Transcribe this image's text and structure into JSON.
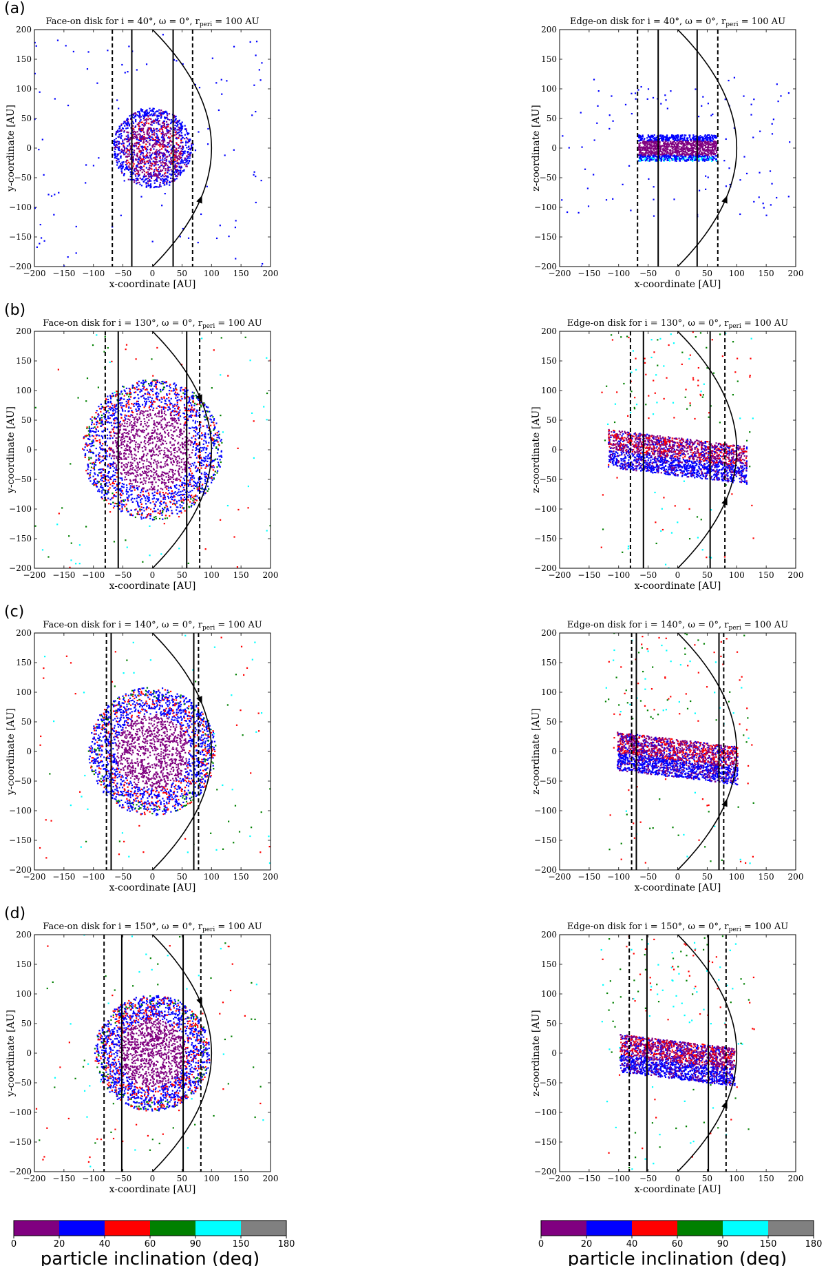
{
  "figure": {
    "row_labels": [
      "(a)",
      "(b)",
      "(c)",
      "(d)"
    ]
  },
  "colorbar": {
    "label": "particle inclination (deg)",
    "ticks": [
      "0",
      "20",
      "40",
      "60",
      "90",
      "150",
      "180"
    ],
    "colors": [
      "#800080",
      "#0000ff",
      "#ff0000",
      "#008000",
      "#00ffff",
      "#808080"
    ]
  },
  "colors": {
    "inc_0_20": "#800080",
    "inc_20_40": "#0000ff",
    "inc_40_60": "#ff0000",
    "inc_60_90": "#008000",
    "inc_90_150": "#00ffff",
    "inc_150_180": "#808080"
  },
  "chart_data": [
    {
      "type": "scatter",
      "view": "face",
      "title_lead": "Face-on disk for i = ",
      "incl_deg": 40,
      "title_tail": "°, ω = 0°, r",
      "title_sub": "peri",
      "title_end": " = 100 AU",
      "xlabel": "x-coordinate [AU]",
      "ylabel": "y-coordinate [AU]",
      "xlim": [
        -200,
        200
      ],
      "ylim": [
        -200,
        200
      ],
      "xticks": [
        -200,
        -150,
        -100,
        -50,
        0,
        50,
        100,
        150,
        200
      ],
      "yticks": [
        -200,
        -150,
        -100,
        -50,
        0,
        50,
        100,
        150,
        200
      ],
      "disk_radius_au": 65,
      "solid_lines_x": [
        -35,
        35
      ],
      "dashed_lines_x": [
        -68,
        68
      ],
      "orbit_periapsis_x": 100,
      "orbit_direction": "upward"
    },
    {
      "type": "scatter",
      "view": "edge",
      "title_lead": "Edge-on disk for i = ",
      "incl_deg": 40,
      "title_tail": "°, ω = 0°, r",
      "title_sub": "peri",
      "title_end": " = 100 AU",
      "xlabel": "x-coordinate [AU]",
      "ylabel": "z-coordinate [AU]",
      "xlim": [
        -200,
        200
      ],
      "ylim": [
        -200,
        200
      ],
      "xticks": [
        -200,
        -150,
        -100,
        -50,
        0,
        50,
        100,
        150,
        200
      ],
      "yticks": [
        -200,
        -150,
        -100,
        -50,
        0,
        50,
        100,
        150,
        200
      ],
      "disk_radius_au": 65,
      "solid_lines_x": [
        -33,
        33
      ],
      "dashed_lines_x": [
        -68,
        68
      ],
      "orbit_periapsis_x": 100,
      "orbit_direction": "upward"
    },
    {
      "type": "scatter",
      "view": "face",
      "title_lead": "Face-on disk for i = ",
      "incl_deg": 130,
      "title_tail": "°, ω = 0°, r",
      "title_sub": "peri",
      "title_end": " = 100 AU",
      "xlabel": "x-coordinate [AU]",
      "ylabel": "y-coordinate [AU]",
      "xlim": [
        -200,
        200
      ],
      "ylim": [
        -200,
        200
      ],
      "xticks": [
        -200,
        -150,
        -100,
        -50,
        0,
        50,
        100,
        150,
        200
      ],
      "yticks": [
        -200,
        -150,
        -100,
        -50,
        0,
        50,
        100,
        150,
        200
      ],
      "disk_radius_au": 115,
      "solid_lines_x": [
        -58,
        58
      ],
      "dashed_lines_x": [
        -80,
        80
      ],
      "orbit_periapsis_x": 100,
      "orbit_direction": "downward"
    },
    {
      "type": "scatter",
      "view": "edge",
      "title_lead": "Edge-on disk for i = ",
      "incl_deg": 130,
      "title_tail": "°, ω = 0°, r",
      "title_sub": "peri",
      "title_end": " = 100 AU",
      "xlabel": "x-coordinate [AU]",
      "ylabel": "z-coordinate [AU]",
      "xlim": [
        -200,
        200
      ],
      "ylim": [
        -200,
        200
      ],
      "xticks": [
        -200,
        -150,
        -100,
        -50,
        0,
        50,
        100,
        150,
        200
      ],
      "yticks": [
        -200,
        -150,
        -100,
        -50,
        0,
        50,
        100,
        150,
        200
      ],
      "disk_radius_au": 115,
      "solid_lines_x": [
        -58,
        55
      ],
      "dashed_lines_x": [
        -80,
        80
      ],
      "orbit_periapsis_x": 100,
      "orbit_direction": "upward"
    },
    {
      "type": "scatter",
      "view": "face",
      "title_lead": "Face-on disk for i = ",
      "incl_deg": 140,
      "title_tail": "°, ω = 0°, r",
      "title_sub": "peri",
      "title_end": " = 100 AU",
      "xlabel": "x-coordinate [AU]",
      "ylabel": "y-coordinate [AU]",
      "xlim": [
        -200,
        200
      ],
      "ylim": [
        -200,
        200
      ],
      "xticks": [
        -200,
        -150,
        -100,
        -50,
        0,
        50,
        100,
        150,
        200
      ],
      "yticks": [
        -200,
        -150,
        -100,
        -50,
        0,
        50,
        100,
        150,
        200
      ],
      "disk_radius_au": 105,
      "solid_lines_x": [
        -70,
        70
      ],
      "dashed_lines_x": [
        -78,
        78
      ],
      "orbit_periapsis_x": 100,
      "orbit_direction": "downward"
    },
    {
      "type": "scatter",
      "view": "edge",
      "title_lead": "Edge-on disk for i = ",
      "incl_deg": 140,
      "title_tail": "°, ω = 0°, r",
      "title_sub": "peri",
      "title_end": " = 100 AU",
      "xlabel": "x-coordinate [AU]",
      "ylabel": "z-coordinate [AU]",
      "xlim": [
        -200,
        200
      ],
      "ylim": [
        -200,
        200
      ],
      "xticks": [
        -200,
        -150,
        -100,
        -50,
        0,
        50,
        100,
        150,
        200
      ],
      "yticks": [
        -200,
        -150,
        -100,
        -50,
        0,
        50,
        100,
        150,
        200
      ],
      "disk_radius_au": 100,
      "solid_lines_x": [
        -70,
        70
      ],
      "dashed_lines_x": [
        -78,
        78
      ],
      "orbit_periapsis_x": 100,
      "orbit_direction": "upward"
    },
    {
      "type": "scatter",
      "view": "face",
      "title_lead": "Face-on disk for i = ",
      "incl_deg": 150,
      "title_tail": "°, ω = 0°, r",
      "title_sub": "peri",
      "title_end": " = 100 AU",
      "xlabel": "x-coordinate [AU]",
      "ylabel": "y-coordinate [AU]",
      "xlim": [
        -200,
        200
      ],
      "ylim": [
        -200,
        200
      ],
      "xticks": [
        -200,
        -150,
        -100,
        -50,
        0,
        50,
        100,
        150,
        200
      ],
      "yticks": [
        -200,
        -150,
        -100,
        -50,
        0,
        50,
        100,
        150,
        200
      ],
      "disk_radius_au": 95,
      "solid_lines_x": [
        -52,
        52
      ],
      "dashed_lines_x": [
        -82,
        82
      ],
      "orbit_periapsis_x": 100,
      "orbit_direction": "downward"
    },
    {
      "type": "scatter",
      "view": "edge",
      "title_lead": "Edge-on disk for i = ",
      "incl_deg": 150,
      "title_tail": "°, ω = 0°, r",
      "title_sub": "peri",
      "title_end": " = 100 AU",
      "xlabel": "x-coordinate [AU]",
      "ylabel": "z-coordinate [AU]",
      "xlim": [
        -200,
        200
      ],
      "ylim": [
        -200,
        200
      ],
      "xticks": [
        -200,
        -150,
        -100,
        -50,
        0,
        50,
        100,
        150,
        200
      ],
      "yticks": [
        -200,
        -150,
        -100,
        -50,
        0,
        50,
        100,
        150,
        200
      ],
      "disk_radius_au": 95,
      "solid_lines_x": [
        -52,
        52
      ],
      "dashed_lines_x": [
        -82,
        82
      ],
      "orbit_periapsis_x": 100,
      "orbit_direction": "upward"
    }
  ]
}
